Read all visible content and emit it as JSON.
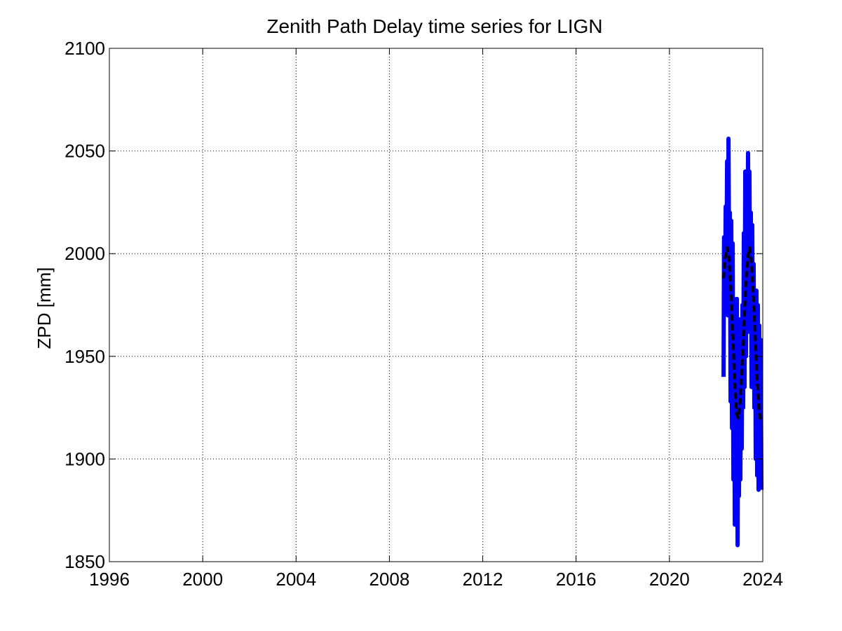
{
  "chart_data": {
    "type": "line",
    "title": "Zenith Path Delay time series for LIGN",
    "xlabel": "",
    "ylabel": "ZPD [mm]",
    "xlim": [
      1996,
      2024
    ],
    "ylim": [
      1850,
      2100
    ],
    "x_ticks": [
      "1996",
      "2000",
      "2004",
      "2008",
      "2012",
      "2016",
      "2020",
      "2024"
    ],
    "y_ticks": [
      "1850",
      "1900",
      "1950",
      "2000",
      "2050",
      "2100"
    ],
    "grid": true,
    "colors": {
      "zpd": "#0000ff",
      "trend": "#000000"
    },
    "series": [
      {
        "style": "solid",
        "color": "#0000ff",
        "x": [
          2022.32,
          2022.34,
          2022.38,
          2022.41,
          2022.44,
          2022.47,
          2022.5,
          2022.53,
          2022.56,
          2022.59,
          2022.62,
          2022.65,
          2022.68,
          2022.71,
          2022.74,
          2022.77,
          2022.8,
          2022.83,
          2022.86,
          2022.89,
          2022.92,
          2022.95,
          2022.98,
          2023.01,
          2023.04,
          2023.07,
          2023.1,
          2023.13,
          2023.16,
          2023.19,
          2023.22,
          2023.25,
          2023.28,
          2023.31,
          2023.34,
          2023.37,
          2023.4,
          2023.43,
          2023.46,
          2023.49,
          2023.52,
          2023.55,
          2023.58,
          2023.61,
          2023.64,
          2023.67,
          2023.7,
          2023.73,
          2023.76,
          2023.79,
          2023.82,
          2023.85,
          2023.88,
          2023.91,
          2023.94
        ],
        "y": [
          1940,
          2008,
          1975,
          2023,
          1985,
          2045,
          1970,
          2056,
          1990,
          2020,
          1928,
          2016,
          1915,
          2005,
          1890,
          1978,
          1868,
          1965,
          1880,
          1978,
          1858,
          1952,
          1882,
          1968,
          1890,
          1950,
          1905,
          1975,
          1925,
          2010,
          1935,
          2040,
          1950,
          2030,
          1975,
          2049,
          1962,
          2040,
          1965,
          2020,
          1935,
          2014,
          1940,
          1995,
          1925,
          1980,
          1900,
          1982,
          1892,
          1975,
          1885,
          1965,
          1890,
          1958,
          1885
        ]
      },
      {
        "style": "dashed",
        "color": "#000000",
        "x": [
          2022.32,
          2022.4,
          2022.48,
          2022.56,
          2022.64,
          2022.72,
          2022.8,
          2022.88,
          2022.96,
          2023.04,
          2023.12,
          2023.2,
          2023.28,
          2023.36,
          2023.44,
          2023.52,
          2023.6,
          2023.68,
          2023.76,
          2023.84,
          2023.92
        ],
        "y": [
          1988,
          1998,
          2003,
          1998,
          1982,
          1960,
          1938,
          1922,
          1920,
          1928,
          1945,
          1965,
          1985,
          1998,
          2003,
          1996,
          1980,
          1960,
          1940,
          1925,
          1918
        ]
      }
    ]
  }
}
